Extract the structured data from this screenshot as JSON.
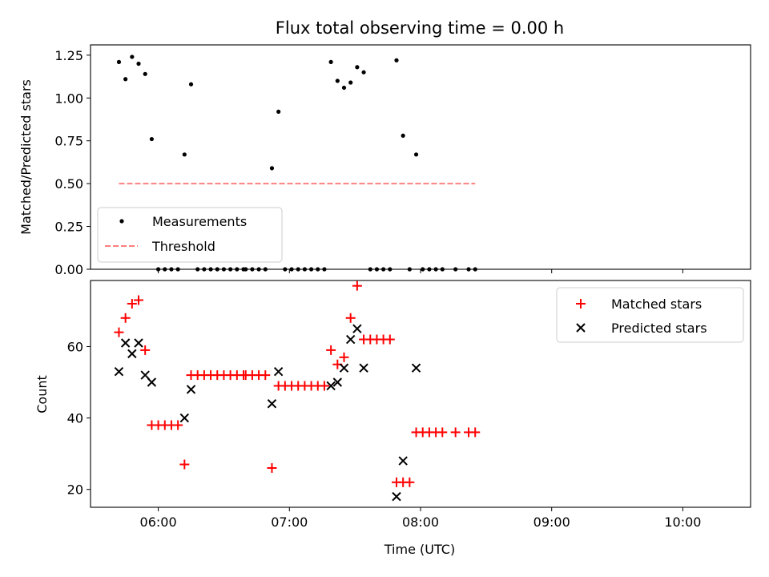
{
  "chart_data": [
    {
      "type": "scatter",
      "title": "Flux total observing time = 0.00 h",
      "xlabel": "",
      "ylabel": "Matched/Predicted stars",
      "xlim": [
        "05:29",
        "10:31"
      ],
      "ylim": [
        0,
        1.31
      ],
      "x_ticks": [
        "06:00",
        "07:00",
        "08:00",
        "09:00",
        "10:00"
      ],
      "y_ticks": [
        "0.00",
        "0.25",
        "0.50",
        "0.75",
        "1.00",
        "1.25"
      ],
      "legend": "lower-left",
      "series": [
        {
          "name": "Measurements",
          "marker": "dot",
          "color": "#000000",
          "points": [
            [
              "05:42",
              1.21
            ],
            [
              "05:45",
              1.11
            ],
            [
              "05:48",
              1.24
            ],
            [
              "05:51",
              1.2
            ],
            [
              "05:54",
              1.14
            ],
            [
              "05:57",
              0.76
            ],
            [
              "06:00",
              0.0
            ],
            [
              "06:03",
              0.0
            ],
            [
              "06:06",
              0.0
            ],
            [
              "06:09",
              0.0
            ],
            [
              "06:12",
              0.67
            ],
            [
              "06:15",
              1.08
            ],
            [
              "06:18",
              0.0
            ],
            [
              "06:21",
              0.0
            ],
            [
              "06:24",
              0.0
            ],
            [
              "06:27",
              0.0
            ],
            [
              "06:30",
              0.0
            ],
            [
              "06:33",
              0.0
            ],
            [
              "06:36",
              0.0
            ],
            [
              "06:39",
              0.0
            ],
            [
              "06:40",
              0.0
            ],
            [
              "06:43",
              0.0
            ],
            [
              "06:46",
              0.0
            ],
            [
              "06:49",
              0.0
            ],
            [
              "06:52",
              0.59
            ],
            [
              "06:55",
              0.92
            ],
            [
              "06:58",
              0.0
            ],
            [
              "07:01",
              0.0
            ],
            [
              "07:04",
              0.0
            ],
            [
              "07:07",
              0.0
            ],
            [
              "07:10",
              0.0
            ],
            [
              "07:13",
              0.0
            ],
            [
              "07:16",
              0.0
            ],
            [
              "07:19",
              1.21
            ],
            [
              "07:22",
              1.1
            ],
            [
              "07:25",
              1.06
            ],
            [
              "07:28",
              1.09
            ],
            [
              "07:31",
              1.18
            ],
            [
              "07:34",
              1.15
            ],
            [
              "07:37",
              0.0
            ],
            [
              "07:40",
              0.0
            ],
            [
              "07:43",
              0.0
            ],
            [
              "07:46",
              0.0
            ],
            [
              "07:49",
              1.22
            ],
            [
              "07:52",
              0.78
            ],
            [
              "07:55",
              0.0
            ],
            [
              "07:58",
              0.67
            ],
            [
              "08:01",
              0.0
            ],
            [
              "08:04",
              0.0
            ],
            [
              "08:07",
              0.0
            ],
            [
              "08:10",
              0.0
            ],
            [
              "08:16",
              0.0
            ],
            [
              "08:22",
              0.0
            ],
            [
              "08:25",
              0.0
            ]
          ]
        },
        {
          "name": "Threshold",
          "marker": "dashed-line",
          "color": "#ff7f7f",
          "points": [
            [
              "05:42",
              0.5
            ],
            [
              "08:25",
              0.5
            ]
          ]
        }
      ]
    },
    {
      "type": "scatter",
      "title": "",
      "xlabel": "Time (UTC)",
      "ylabel": "Count",
      "xlim": [
        "05:29",
        "10:31"
      ],
      "ylim": [
        15,
        78.5
      ],
      "x_ticks": [
        "06:00",
        "07:00",
        "08:00",
        "09:00",
        "10:00"
      ],
      "y_ticks": [
        "20",
        "40",
        "60"
      ],
      "legend": "top-right",
      "series": [
        {
          "name": "Matched stars",
          "marker": "plus",
          "color": "#ff0000",
          "points": [
            [
              "05:42",
              64
            ],
            [
              "05:45",
              68
            ],
            [
              "05:48",
              72
            ],
            [
              "05:51",
              73
            ],
            [
              "05:54",
              59
            ],
            [
              "05:57",
              38
            ],
            [
              "06:00",
              38
            ],
            [
              "06:03",
              38
            ],
            [
              "06:06",
              38
            ],
            [
              "06:09",
              38
            ],
            [
              "06:12",
              27
            ],
            [
              "06:15",
              52
            ],
            [
              "06:18",
              52
            ],
            [
              "06:21",
              52
            ],
            [
              "06:24",
              52
            ],
            [
              "06:27",
              52
            ],
            [
              "06:30",
              52
            ],
            [
              "06:33",
              52
            ],
            [
              "06:36",
              52
            ],
            [
              "06:39",
              52
            ],
            [
              "06:40",
              52
            ],
            [
              "06:43",
              52
            ],
            [
              "06:46",
              52
            ],
            [
              "06:49",
              52
            ],
            [
              "06:52",
              26
            ],
            [
              "06:55",
              49
            ],
            [
              "06:58",
              49
            ],
            [
              "07:01",
              49
            ],
            [
              "07:04",
              49
            ],
            [
              "07:07",
              49
            ],
            [
              "07:10",
              49
            ],
            [
              "07:13",
              49
            ],
            [
              "07:16",
              49
            ],
            [
              "07:19",
              59
            ],
            [
              "07:22",
              55
            ],
            [
              "07:25",
              57
            ],
            [
              "07:28",
              68
            ],
            [
              "07:31",
              77
            ],
            [
              "07:34",
              62
            ],
            [
              "07:37",
              62
            ],
            [
              "07:40",
              62
            ],
            [
              "07:43",
              62
            ],
            [
              "07:46",
              62
            ],
            [
              "07:49",
              22
            ],
            [
              "07:52",
              22
            ],
            [
              "07:55",
              22
            ],
            [
              "07:58",
              36
            ],
            [
              "08:01",
              36
            ],
            [
              "08:04",
              36
            ],
            [
              "08:07",
              36
            ],
            [
              "08:10",
              36
            ],
            [
              "08:16",
              36
            ],
            [
              "08:22",
              36
            ],
            [
              "08:25",
              36
            ]
          ]
        },
        {
          "name": "Predicted stars",
          "marker": "x",
          "color": "#000000",
          "points": [
            [
              "05:42",
              53
            ],
            [
              "05:45",
              61
            ],
            [
              "05:48",
              58
            ],
            [
              "05:51",
              61
            ],
            [
              "05:54",
              52
            ],
            [
              "05:57",
              50
            ],
            [
              "06:12",
              40
            ],
            [
              "06:15",
              48
            ],
            [
              "06:52",
              44
            ],
            [
              "06:55",
              53
            ],
            [
              "07:19",
              49
            ],
            [
              "07:22",
              50
            ],
            [
              "07:25",
              54
            ],
            [
              "07:28",
              62
            ],
            [
              "07:31",
              65
            ],
            [
              "07:34",
              54
            ],
            [
              "07:49",
              18
            ],
            [
              "07:52",
              28
            ],
            [
              "07:58",
              54
            ]
          ]
        }
      ]
    }
  ]
}
